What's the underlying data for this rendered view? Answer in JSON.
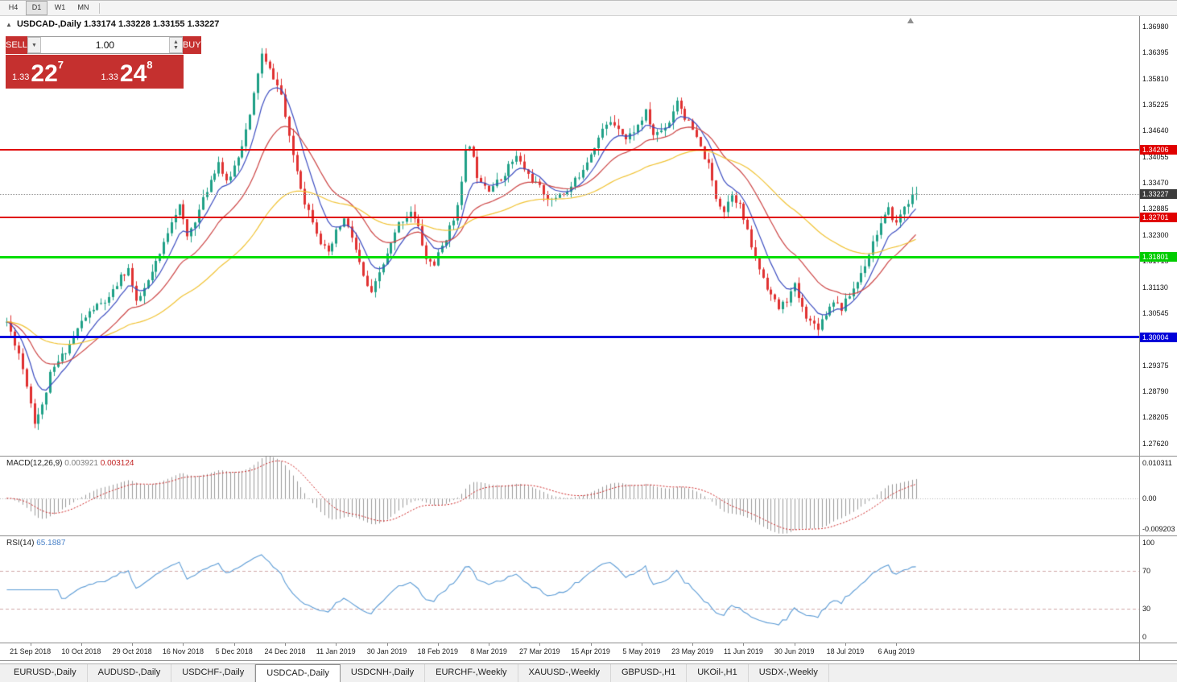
{
  "toolbar": {
    "timeframes": [
      "H4",
      "D1",
      "W1",
      "MN"
    ],
    "active": "D1"
  },
  "chart_header": {
    "symbol": "USDCAD-,Daily",
    "open": "1.33174",
    "high": "1.33228",
    "low": "1.33155",
    "close": "1.33227"
  },
  "trade_panel": {
    "sell_label": "SELL",
    "buy_label": "BUY",
    "volume": "1.00",
    "sell_price": {
      "prefix": "1.33",
      "big": "22",
      "sup": "7"
    },
    "buy_price": {
      "prefix": "1.33",
      "big": "24",
      "sup": "8"
    }
  },
  "price_axis": {
    "labels": [
      "1.36980",
      "1.36395",
      "1.35810",
      "1.35225",
      "1.34640",
      "1.34055",
      "1.33470",
      "1.32885",
      "1.32300",
      "1.31715",
      "1.31130",
      "1.30545",
      "1.29960",
      "1.29375",
      "1.28790",
      "1.28205",
      "1.27620"
    ],
    "badges": [
      {
        "value": "1.34206",
        "price": 1.34206,
        "bg": "#e00000",
        "fg": "#ffffff"
      },
      {
        "value": "1.33227",
        "price": 1.33227,
        "bg": "#3c3c3c",
        "fg": "#ffffff"
      },
      {
        "value": "1.32701",
        "price": 1.32701,
        "bg": "#e00000",
        "fg": "#ffffff"
      },
      {
        "value": "1.31801",
        "price": 1.31801,
        "bg": "#00cc00",
        "fg": "#ffffff"
      },
      {
        "value": "1.30004",
        "price": 1.30004,
        "bg": "#0000d8",
        "fg": "#ffffff"
      }
    ]
  },
  "indicators": {
    "macd": {
      "name": "MACD(12,26,9)",
      "value_main": "0.003921",
      "value_signal": "0.003124",
      "axis": {
        "top": "0.010311",
        "zero": "0.00",
        "bottom": "-0.009203"
      }
    },
    "rsi": {
      "name": "RSI(14)",
      "value": "65.1887",
      "axis": [
        "100",
        "70",
        "30",
        "0"
      ]
    }
  },
  "date_axis": [
    "21 Sep 2018",
    "10 Oct 2018",
    "29 Oct 2018",
    "16 Nov 2018",
    "5 Dec 2018",
    "24 Dec 2018",
    "11 Jan 2019",
    "30 Jan 2019",
    "18 Feb 2019",
    "8 Mar 2019",
    "27 Mar 2019",
    "15 Apr 2019",
    "5 May 2019",
    "23 May 2019",
    "11 Jun 2019",
    "30 Jun 2019",
    "18 Jul 2019",
    "6 Aug 2019"
  ],
  "tabs": {
    "active_index": 3,
    "items": [
      "EURUSD-,Daily",
      "AUDUSD-,Daily",
      "USDCHF-,Daily",
      "USDCAD-,Daily",
      "USDCNH-,Daily",
      "EURCHF-,Weekly",
      "XAUUSD-,Weekly",
      "GBPUSD-,H1",
      "UKOil-,H1",
      "USDX-,Weekly"
    ]
  },
  "chart_data": {
    "type": "candlestick",
    "symbol": "USDCAD",
    "timeframe": "Daily",
    "candle_count": 233,
    "visible_price_range": [
      1.27343,
      1.37233
    ],
    "last_ohlc": {
      "open": 1.33174,
      "high": 1.33228,
      "low": 1.33155,
      "close": 1.33227
    },
    "last_close": 1.33227,
    "date_tick_first_candle": 6,
    "date_tick_step": 13,
    "waypoints": [
      [
        0,
        1.3035
      ],
      [
        3,
        1.2965
      ],
      [
        5,
        1.2895
      ],
      [
        7,
        1.2812
      ],
      [
        9,
        1.2845
      ],
      [
        11,
        1.2915
      ],
      [
        13,
        1.2945
      ],
      [
        16,
        1.2985
      ],
      [
        19,
        1.3035
      ],
      [
        22,
        1.3065
      ],
      [
        26,
        1.3085
      ],
      [
        29,
        1.3135
      ],
      [
        31,
        1.3155
      ],
      [
        33,
        1.3075
      ],
      [
        36,
        1.3125
      ],
      [
        39,
        1.3185
      ],
      [
        42,
        1.3265
      ],
      [
        44,
        1.3295
      ],
      [
        46,
        1.3225
      ],
      [
        49,
        1.3285
      ],
      [
        52,
        1.3355
      ],
      [
        54,
        1.3395
      ],
      [
        56,
        1.3345
      ],
      [
        58,
        1.3385
      ],
      [
        60,
        1.3435
      ],
      [
        62,
        1.3495
      ],
      [
        64,
        1.3595
      ],
      [
        65,
        1.3635
      ],
      [
        66,
        1.3615
      ],
      [
        68,
        1.3585
      ],
      [
        70,
        1.3545
      ],
      [
        72,
        1.3445
      ],
      [
        74,
        1.3375
      ],
      [
        76,
        1.3305
      ],
      [
        78,
        1.3265
      ],
      [
        80,
        1.3215
      ],
      [
        82,
        1.3185
      ],
      [
        84,
        1.3235
      ],
      [
        86,
        1.3265
      ],
      [
        88,
        1.3225
      ],
      [
        91,
        1.3135
      ],
      [
        93,
        1.3095
      ],
      [
        95,
        1.3145
      ],
      [
        97,
        1.3185
      ],
      [
        100,
        1.3255
      ],
      [
        103,
        1.3285
      ],
      [
        105,
        1.3245
      ],
      [
        107,
        1.3175
      ],
      [
        109,
        1.3165
      ],
      [
        112,
        1.3225
      ],
      [
        114,
        1.3265
      ],
      [
        116,
        1.3345
      ],
      [
        117,
        1.3415
      ],
      [
        118,
        1.3435
      ],
      [
        120,
        1.3365
      ],
      [
        123,
        1.3335
      ],
      [
        126,
        1.3355
      ],
      [
        128,
        1.3385
      ],
      [
        130,
        1.3405
      ],
      [
        133,
        1.3365
      ],
      [
        136,
        1.3335
      ],
      [
        139,
        1.3305
      ],
      [
        141,
        1.3325
      ],
      [
        143,
        1.3325
      ],
      [
        146,
        1.3365
      ],
      [
        149,
        1.3415
      ],
      [
        152,
        1.3465
      ],
      [
        154,
        1.3485
      ],
      [
        156,
        1.3475
      ],
      [
        158,
        1.3445
      ],
      [
        161,
        1.3475
      ],
      [
        163,
        1.3505
      ],
      [
        165,
        1.3455
      ],
      [
        167,
        1.3465
      ],
      [
        169,
        1.3485
      ],
      [
        171,
        1.3535
      ],
      [
        173,
        1.3495
      ],
      [
        175,
        1.3465
      ],
      [
        177,
        1.3425
      ],
      [
        179,
        1.3385
      ],
      [
        181,
        1.3315
      ],
      [
        183,
        1.3285
      ],
      [
        185,
        1.3325
      ],
      [
        187,
        1.3295
      ],
      [
        189,
        1.3235
      ],
      [
        191,
        1.3175
      ],
      [
        193,
        1.3135
      ],
      [
        195,
        1.3095
      ],
      [
        197,
        1.3065
      ],
      [
        199,
        1.3085
      ],
      [
        201,
        1.3115
      ],
      [
        203,
        1.3065
      ],
      [
        205,
        1.3035
      ],
      [
        207,
        1.3025
      ],
      [
        209,
        1.3055
      ],
      [
        211,
        1.3085
      ],
      [
        213,
        1.3065
      ],
      [
        215,
        1.3095
      ],
      [
        217,
        1.3125
      ],
      [
        219,
        1.3165
      ],
      [
        221,
        1.3215
      ],
      [
        223,
        1.3255
      ],
      [
        225,
        1.3285
      ],
      [
        227,
        1.3255
      ],
      [
        229,
        1.3295
      ],
      [
        231,
        1.3315
      ],
      [
        232,
        1.33227
      ]
    ],
    "horizontal_levels": [
      {
        "price": 1.34206,
        "color": "#e00000",
        "thickness": 2
      },
      {
        "price": 1.32701,
        "color": "#e00000",
        "thickness": 2
      },
      {
        "price": 1.31801,
        "color": "#00dd00",
        "thickness": 3
      },
      {
        "price": 1.30004,
        "color": "#0000dd",
        "thickness": 3
      }
    ],
    "current_price_line": {
      "price": 1.33227,
      "color": "#999999"
    },
    "moving_averages": [
      {
        "period": 8,
        "color": "#3b4cc0"
      },
      {
        "period": 21,
        "color": "#cc4444"
      },
      {
        "period": 55,
        "color": "#f0c232"
      }
    ],
    "candle_colors": {
      "up": "#1fa087",
      "down": "#e03131"
    },
    "macd": {
      "fast": 12,
      "slow": 26,
      "signal": 9,
      "range": [
        -0.0092,
        0.0103
      ],
      "histogram_color": "#9a9a9a",
      "signal_color": "#cc2222",
      "current_main": 0.003921,
      "current_signal": 0.003124
    },
    "rsi": {
      "period": 14,
      "range": [
        0,
        100
      ],
      "levels": [
        30,
        70
      ],
      "line_color": "#5b9bd5",
      "level_color": "#d0a8a8",
      "current": 65.1887
    },
    "seed": 11
  }
}
